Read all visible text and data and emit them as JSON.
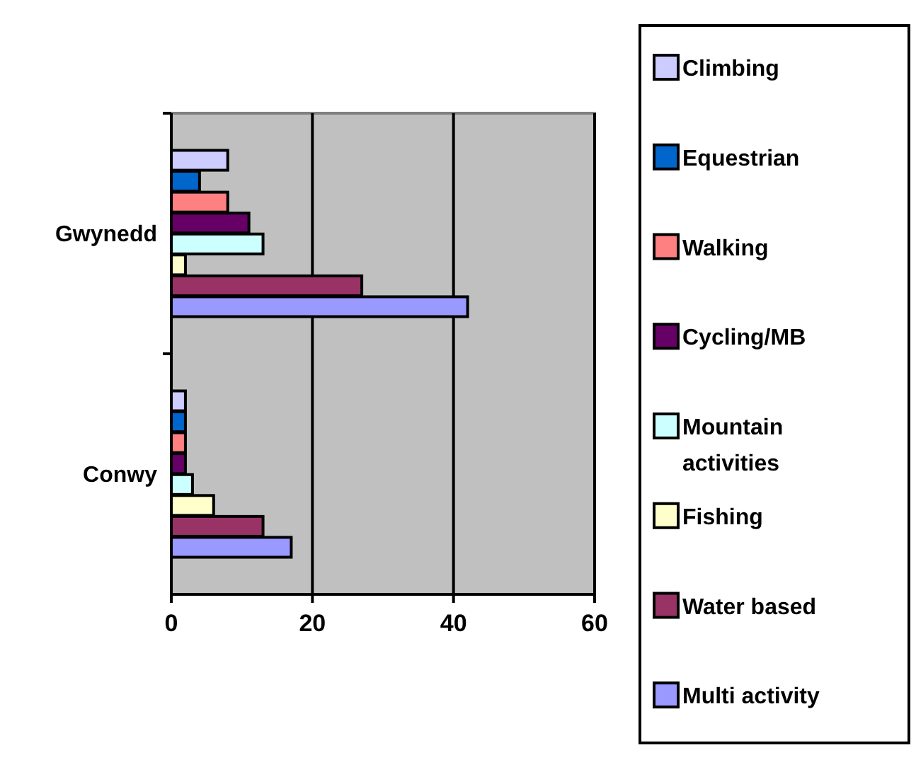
{
  "chart_data": {
    "type": "bar",
    "orientation": "horizontal",
    "categories": [
      "Gwynedd",
      "Conwy"
    ],
    "series": [
      {
        "name": "Multi activity",
        "color": "#9999ff",
        "values": [
          42,
          17
        ]
      },
      {
        "name": "Water based",
        "color": "#993366",
        "values": [
          27,
          13
        ]
      },
      {
        "name": "Fishing",
        "color": "#ffffcc",
        "values": [
          2,
          6
        ]
      },
      {
        "name": "Mountain activities",
        "color": "#ccffff",
        "values": [
          13,
          3
        ]
      },
      {
        "name": "Cycling/MB",
        "color": "#660066",
        "values": [
          11,
          2
        ]
      },
      {
        "name": "Walking",
        "color": "#ff8080",
        "values": [
          8,
          2
        ]
      },
      {
        "name": "Equestrian",
        "color": "#0066cc",
        "values": [
          4,
          2
        ]
      },
      {
        "name": "Climbing",
        "color": "#ccccff",
        "values": [
          8,
          2
        ]
      }
    ],
    "xlim": [
      0,
      60
    ],
    "xticks": [
      0,
      20,
      40,
      60
    ],
    "grid": "x",
    "legend": "right"
  }
}
